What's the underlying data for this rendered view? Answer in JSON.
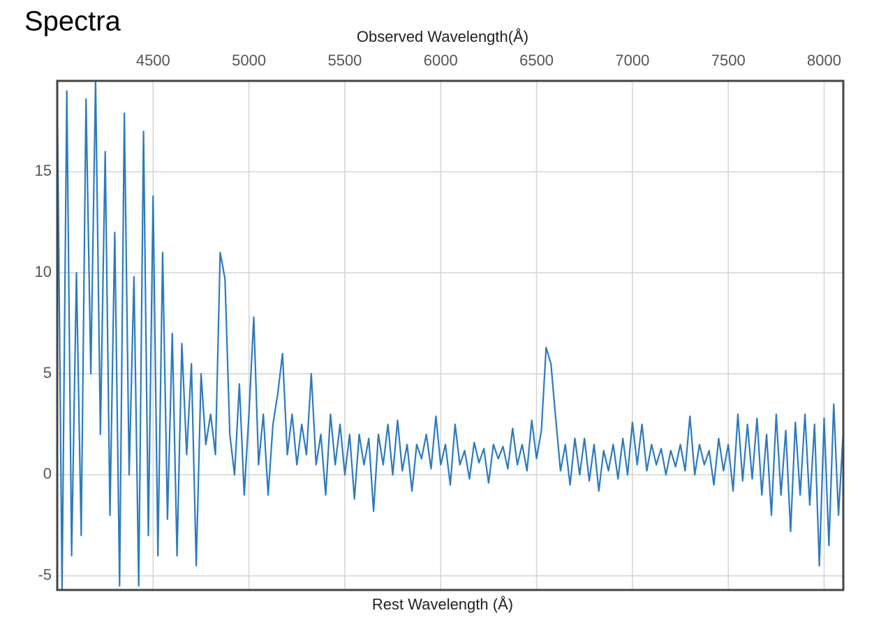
{
  "chart_data": {
    "type": "line",
    "title": "Spectra",
    "xlabel_top": "Observed Wavelength(Å)",
    "xlabel": "Rest Wavelength (Å)",
    "x": [
      4000,
      4025,
      4050,
      4075,
      4100,
      4125,
      4150,
      4175,
      4200,
      4225,
      4250,
      4275,
      4300,
      4325,
      4350,
      4375,
      4400,
      4425,
      4450,
      4475,
      4500,
      4525,
      4550,
      4575,
      4600,
      4625,
      4650,
      4675,
      4700,
      4725,
      4750,
      4775,
      4800,
      4825,
      4850,
      4875,
      4900,
      4925,
      4950,
      4975,
      5000,
      5025,
      5050,
      5075,
      5100,
      5125,
      5150,
      5175,
      5200,
      5225,
      5250,
      5275,
      5300,
      5325,
      5350,
      5375,
      5400,
      5425,
      5450,
      5475,
      5500,
      5525,
      5550,
      5575,
      5600,
      5625,
      5650,
      5675,
      5700,
      5725,
      5750,
      5775,
      5800,
      5825,
      5850,
      5875,
      5900,
      5925,
      5950,
      5975,
      6000,
      6025,
      6050,
      6075,
      6100,
      6125,
      6150,
      6175,
      6200,
      6225,
      6250,
      6275,
      6300,
      6325,
      6350,
      6375,
      6400,
      6425,
      6450,
      6475,
      6500,
      6525,
      6550,
      6575,
      6600,
      6625,
      6650,
      6675,
      6700,
      6725,
      6750,
      6775,
      6800,
      6825,
      6850,
      6875,
      6900,
      6925,
      6950,
      6975,
      7000,
      7025,
      7050,
      7075,
      7100,
      7125,
      7150,
      7175,
      7200,
      7225,
      7250,
      7275,
      7300,
      7325,
      7350,
      7375,
      7400,
      7425,
      7450,
      7475,
      7500,
      7525,
      7550,
      7575,
      7600,
      7625,
      7650,
      7675,
      7700,
      7725,
      7750,
      7775,
      7800,
      7825,
      7850,
      7875,
      7900,
      7925,
      7950,
      7975,
      8000,
      8025,
      8050,
      8075,
      8100
    ],
    "series": [
      {
        "color": "#2b7bbf",
        "values": [
          19,
          -5.7,
          19,
          -4,
          10,
          -3,
          18.6,
          5,
          19.5,
          2,
          16,
          -2,
          12,
          -5.5,
          17.9,
          0,
          9.8,
          -5.5,
          17,
          -3,
          13.8,
          -4,
          11,
          -2.2,
          7,
          -4,
          6.5,
          1,
          5.5,
          -4.5,
          5,
          1.5,
          3,
          1,
          11,
          9.7,
          2,
          0,
          4.5,
          -1,
          3,
          7.8,
          0.5,
          3,
          -1,
          2.5,
          4,
          6,
          1,
          3,
          0.5,
          2.5,
          1,
          5,
          0.5,
          2,
          -1,
          3,
          0.5,
          2.5,
          0,
          2,
          -1.2,
          2,
          0.5,
          1.8,
          -1.8,
          2,
          0.5,
          2.5,
          0,
          2.7,
          0.2,
          1.5,
          -0.8,
          1.5,
          0.8,
          2,
          0.3,
          2.9,
          0.5,
          1.5,
          -0.5,
          2.5,
          0.5,
          1.2,
          -0.2,
          1.6,
          0.6,
          1.3,
          -0.4,
          1.5,
          0.8,
          1.4,
          0.3,
          2.3,
          0.5,
          1.5,
          0.2,
          2.7,
          0.8,
          2.2,
          6.3,
          5.5,
          2.8,
          0.2,
          1.5,
          -0.5,
          1.8,
          0,
          1.8,
          -0.3,
          1.5,
          -0.8,
          1.2,
          0.2,
          1.5,
          -0.2,
          1.8,
          0,
          2.6,
          0.5,
          2.5,
          0.2,
          1.5,
          0.5,
          1.3,
          0,
          1.2,
          0.4,
          1.5,
          0.2,
          2.9,
          0,
          1.5,
          0.5,
          1.2,
          -0.5,
          1.8,
          0.2,
          1.5,
          -0.8,
          3,
          -0.3,
          2.5,
          -0.2,
          2.8,
          -1,
          2,
          -2,
          3,
          -1,
          2.2,
          -2.8,
          2.6,
          -1,
          3,
          -1.5,
          2.5,
          -4.5,
          2.8,
          -3.5,
          3.5,
          -2,
          2.2
        ]
      }
    ],
    "xlim": [
      4000,
      8100
    ],
    "xticks": [
      4500,
      5000,
      5500,
      6000,
      6500,
      7000,
      7500,
      8000
    ],
    "ylim": [
      -5.7,
      19.5
    ],
    "yticks": [
      -5,
      0,
      5,
      10,
      15
    ],
    "grid": true
  }
}
